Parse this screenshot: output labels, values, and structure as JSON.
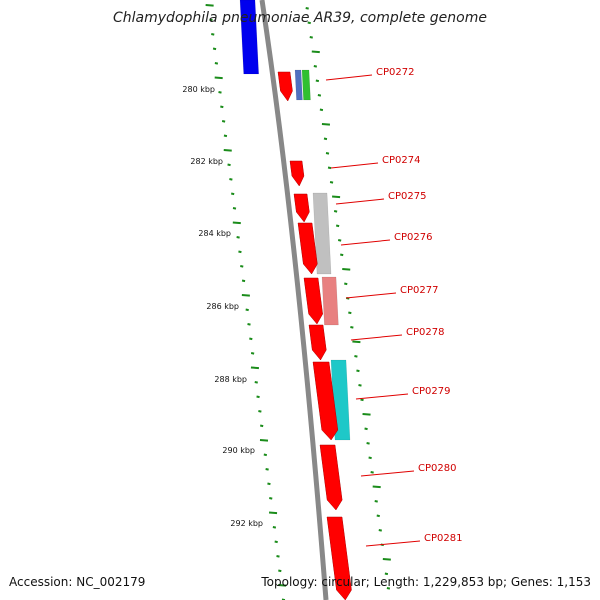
{
  "title": "Chlamydophila pneumoniae AR39, complete genome",
  "footer": {
    "accession": "Accession: NC_002179",
    "stats": "Topology: circular; Length: 1,229,853 bp; Genes: 1,153"
  },
  "colors": {
    "gene_red": "#ff0000",
    "backbone": "#888888",
    "tick_green": "#1a8c1a",
    "label_red": "#d00000",
    "blue": "#0000ee",
    "cyan": "#1ec8c8",
    "gray": "#c0c0c0",
    "pink": "#e88080"
  },
  "kbp_labels": [
    "280 kbp",
    "282 kbp",
    "284 kbp",
    "286 kbp",
    "288 kbp",
    "290 kbp",
    "292 kbp"
  ],
  "genes": [
    "CP0272",
    "CP0274",
    "CP0275",
    "CP0276",
    "CP0277",
    "CP0278",
    "CP0279",
    "CP0280",
    "CP0281"
  ]
}
